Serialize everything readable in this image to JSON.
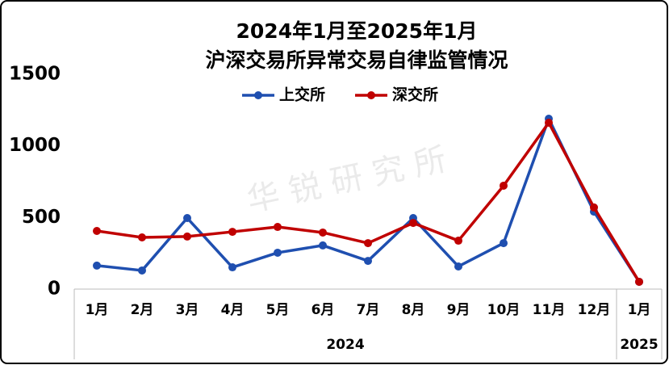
{
  "chart_data": {
    "type": "line",
    "title": "2024年1月至2025年1月",
    "subtitle": "沪深交易所异常交易自律监管情况",
    "watermark": "华 锐 研 究 所",
    "categories": [
      "1月",
      "2月",
      "3月",
      "4月",
      "5月",
      "6月",
      "7月",
      "8月",
      "9月",
      "10月",
      "11月",
      "12月",
      "1月"
    ],
    "category_groups": [
      {
        "label": "2024",
        "size": 12
      },
      {
        "label": "2025",
        "size": 1
      }
    ],
    "series": [
      {
        "name": "上交所",
        "color": "#1f4fb0",
        "values": [
          164,
          130,
          496,
          152,
          254,
          305,
          197,
          496,
          158,
          321,
          1190,
          541,
          51
        ]
      },
      {
        "name": "深交所",
        "color": "#c00000",
        "values": [
          406,
          361,
          367,
          400,
          434,
          395,
          321,
          462,
          338,
          722,
          1162,
          570,
          51
        ]
      }
    ],
    "ylim": [
      0,
      1500
    ],
    "yticks": [
      0,
      500,
      1000,
      1500
    ],
    "grid": false,
    "legend": "top"
  }
}
